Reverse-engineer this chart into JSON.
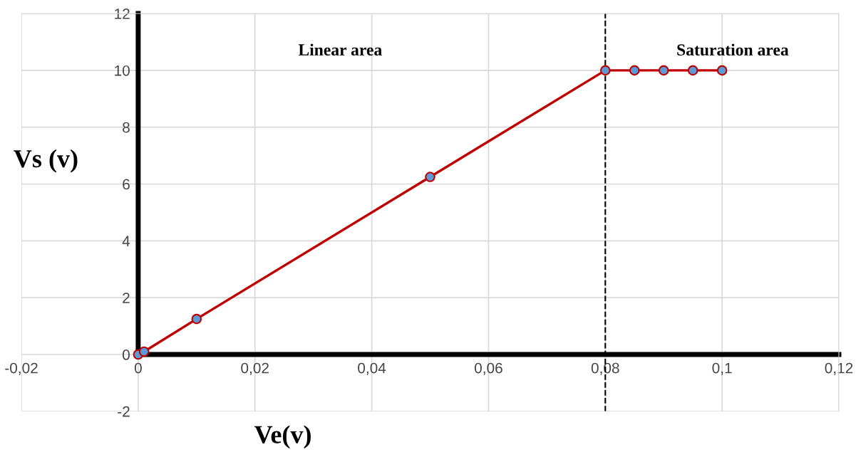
{
  "chart_data": {
    "type": "line",
    "xlabel": "Ve(v)",
    "ylabel": "Vs (v)",
    "x": [
      0,
      0.001,
      0.01,
      0.05,
      0.08,
      0.085,
      0.09,
      0.095,
      0.1
    ],
    "series": [
      {
        "color": "#c00000",
        "values": [
          0,
          0.1,
          1.25,
          6.25,
          10,
          10,
          10,
          10,
          10
        ]
      }
    ],
    "xlim": [
      -0.02,
      0.12
    ],
    "xticks": [
      {
        "value": -0.02,
        "label": "-0,02"
      },
      0,
      {
        "value": 0.02,
        "label": "0,02"
      },
      {
        "value": 0.04,
        "label": "0,04"
      },
      {
        "value": 0.06,
        "label": "0,06"
      },
      {
        "value": 0.08,
        "label": "0,08"
      },
      {
        "value": 0.1,
        "label": "0,1"
      },
      {
        "value": 0.12,
        "label": "0,12"
      }
    ],
    "ylim": [
      -2,
      12
    ],
    "yticks": [
      -2,
      0,
      2,
      4,
      6,
      8,
      10,
      12
    ],
    "ref_lines": [
      {
        "axis": "x",
        "value": 0.08,
        "color": "#000000",
        "line_style": "dashed"
      }
    ],
    "annotations": [
      "Linear area",
      "Saturation area"
    ],
    "grid": true,
    "marker": "circle",
    "line_style": "solid",
    "legend": false
  }
}
